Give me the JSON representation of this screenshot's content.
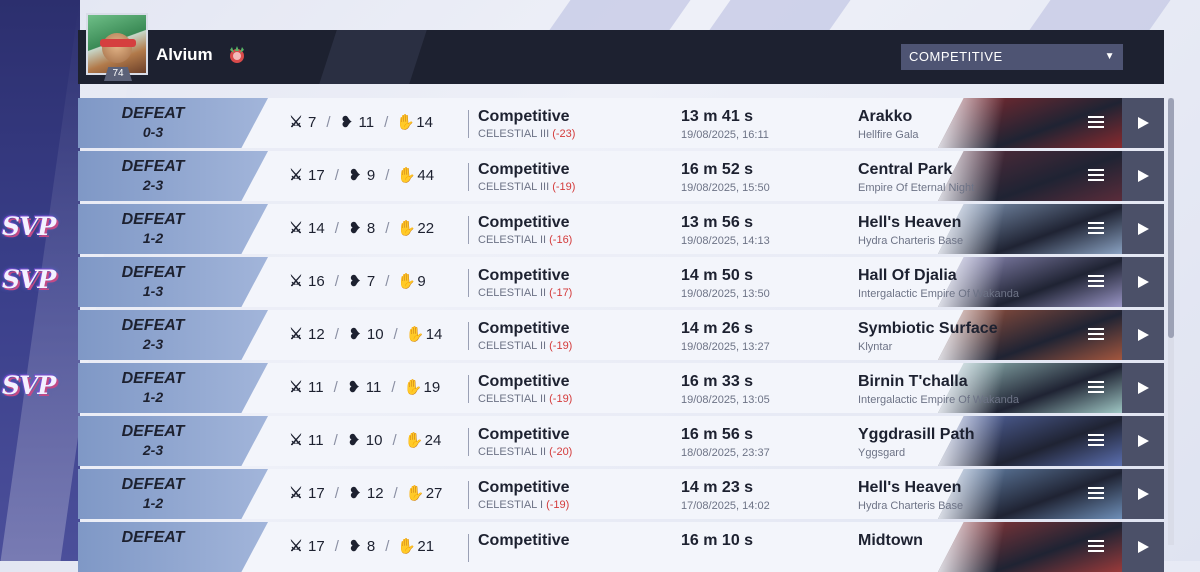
{
  "player": {
    "name": "Alvium",
    "level": "74"
  },
  "mode_select": {
    "value": "COMPETITIVE"
  },
  "matches": [
    {
      "result": "DEFEAT",
      "score": "0-3",
      "kills": "7",
      "deaths": "11",
      "assists": "14",
      "mode": "Competitive",
      "rank": "CELESTIAL III",
      "delta": "(-23)",
      "duration": "13 m 41 s",
      "date": "19/08/2025, 16:11",
      "map": "Arakko",
      "region": "Hellfire Gala",
      "svp": ""
    },
    {
      "result": "DEFEAT",
      "score": "2-3",
      "kills": "17",
      "deaths": "9",
      "assists": "44",
      "mode": "Competitive",
      "rank": "CELESTIAL III",
      "delta": "(-19)",
      "duration": "16 m 52 s",
      "date": "19/08/2025, 15:50",
      "map": "Central Park",
      "region": "Empire Of Eternal Night",
      "svp": ""
    },
    {
      "result": "DEFEAT",
      "score": "1-2",
      "kills": "14",
      "deaths": "8",
      "assists": "22",
      "mode": "Competitive",
      "rank": "CELESTIAL II",
      "delta": "(-16)",
      "duration": "13 m 56 s",
      "date": "19/08/2025, 14:13",
      "map": "Hell's Heaven",
      "region": "Hydra Charteris Base",
      "svp": "SVP"
    },
    {
      "result": "DEFEAT",
      "score": "1-3",
      "kills": "16",
      "deaths": "7",
      "assists": "9",
      "mode": "Competitive",
      "rank": "CELESTIAL II",
      "delta": "(-17)",
      "duration": "14 m 50 s",
      "date": "19/08/2025, 13:50",
      "map": "Hall Of Djalia",
      "region": "Intergalactic Empire Of Wakanda",
      "svp": "SVP"
    },
    {
      "result": "DEFEAT",
      "score": "2-3",
      "kills": "12",
      "deaths": "10",
      "assists": "14",
      "mode": "Competitive",
      "rank": "CELESTIAL II",
      "delta": "(-19)",
      "duration": "14 m 26 s",
      "date": "19/08/2025, 13:27",
      "map": "Symbiotic Surface",
      "region": "Klyntar",
      "svp": ""
    },
    {
      "result": "DEFEAT",
      "score": "1-2",
      "kills": "11",
      "deaths": "11",
      "assists": "19",
      "mode": "Competitive",
      "rank": "CELESTIAL II",
      "delta": "(-19)",
      "duration": "16 m 33 s",
      "date": "19/08/2025, 13:05",
      "map": "Birnin T'challa",
      "region": "Intergalactic Empire Of Wakanda",
      "svp": "SVP"
    },
    {
      "result": "DEFEAT",
      "score": "2-3",
      "kills": "11",
      "deaths": "10",
      "assists": "24",
      "mode": "Competitive",
      "rank": "CELESTIAL II",
      "delta": "(-20)",
      "duration": "16 m 56 s",
      "date": "18/08/2025, 23:37",
      "map": "Yggdrasill Path",
      "region": "Yggsgard",
      "svp": ""
    },
    {
      "result": "DEFEAT",
      "score": "1-2",
      "kills": "17",
      "deaths": "12",
      "assists": "27",
      "mode": "Competitive",
      "rank": "CELESTIAL I",
      "delta": "(-19)",
      "duration": "14 m 23 s",
      "date": "17/08/2025, 14:02",
      "map": "Hell's Heaven",
      "region": "Hydra Charteris Base",
      "svp": ""
    },
    {
      "result": "DEFEAT",
      "score": "",
      "kills": "17",
      "deaths": "8",
      "assists": "21",
      "mode": "Competitive",
      "rank": "",
      "delta": "",
      "duration": "16 m 10 s",
      "date": "",
      "map": "Midtown",
      "region": "",
      "svp": ""
    }
  ],
  "map_colors": [
    "#8a2a2e",
    "#5a2c3a",
    "#8aa2c2",
    "#9a96c6",
    "#a3563e",
    "#9fc7c4",
    "#5b6fb0",
    "#6e8fb8",
    "#9a3a3a"
  ],
  "icons": {
    "kills": "crossed-swords-icon",
    "deaths": "broken-heart-icon",
    "assists": "helping-hand-icon",
    "menu": "menu-icon",
    "play": "play-icon",
    "dropdown": "chevron-down-icon"
  }
}
